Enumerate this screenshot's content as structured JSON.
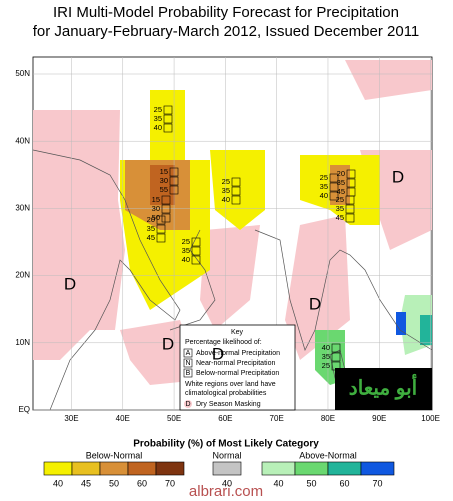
{
  "title_lines": [
    "IRI Multi-Model Probability Forecast for Precipitation",
    "for January-February-March 2012, Issued December 2011"
  ],
  "lat_ticks": [
    {
      "value": 50,
      "label": "50N"
    },
    {
      "value": 40,
      "label": "40N"
    },
    {
      "value": 30,
      "label": "30N"
    },
    {
      "value": 20,
      "label": "20N"
    },
    {
      "value": 10,
      "label": "10N"
    },
    {
      "value": 0,
      "label": "EQ"
    }
  ],
  "lon_ticks": [
    {
      "value": 30,
      "label": "30E"
    },
    {
      "value": 40,
      "label": "40E"
    },
    {
      "value": 50,
      "label": "50E"
    },
    {
      "value": 60,
      "label": "60E"
    },
    {
      "value": 70,
      "label": "70E"
    },
    {
      "value": 80,
      "label": "80E"
    },
    {
      "value": 90,
      "label": "90E"
    },
    {
      "value": 100,
      "label": "100E"
    }
  ],
  "forecasts": [
    [
      25,
      35,
      40
    ],
    [
      15,
      30,
      55
    ],
    [
      15,
      30,
      50
    ],
    [
      20,
      35,
      45
    ],
    [
      25,
      35,
      40
    ],
    [
      25,
      35,
      40
    ],
    [
      25,
      35,
      40
    ],
    [
      20,
      35,
      45
    ],
    [
      25,
      35,
      45
    ],
    [
      40,
      35,
      25
    ]
  ],
  "dry_labels": [
    "D",
    "D",
    "D",
    "D",
    "D"
  ],
  "key": {
    "title": "Key",
    "subtitle": "Percentage likelihood of:",
    "rows": [
      {
        "letter": "A",
        "text": "Above-normal Precipitation"
      },
      {
        "letter": "N",
        "text": "Near-normal Precipitation"
      },
      {
        "letter": "B",
        "text": "Below-normal Precipitation"
      }
    ],
    "note_lines": [
      "White regions over land have",
      "climatological probabilities"
    ],
    "dry": {
      "letter": "D",
      "text": "Dry Season Masking"
    }
  },
  "legend": {
    "title": "Probability (%) of Most Likely Category",
    "groups": [
      {
        "name": "Below-Normal",
        "colors": [
          "#f5f000",
          "#e8c020",
          "#d89038",
          "#c06420",
          "#7e3410"
        ],
        "labels": [
          40,
          45,
          50,
          60,
          70
        ]
      },
      {
        "name": "Normal",
        "colors": [
          "#c4c4c4"
        ],
        "labels": [
          40
        ]
      },
      {
        "name": "Above-Normal",
        "colors": [
          "#b8f0b8",
          "#6ad870",
          "#22b49a",
          "#1058e0"
        ],
        "labels": [
          40,
          50,
          60,
          70
        ]
      }
    ]
  },
  "watermarks": [
    "أبو ميعاد",
    "albrari.com"
  ]
}
